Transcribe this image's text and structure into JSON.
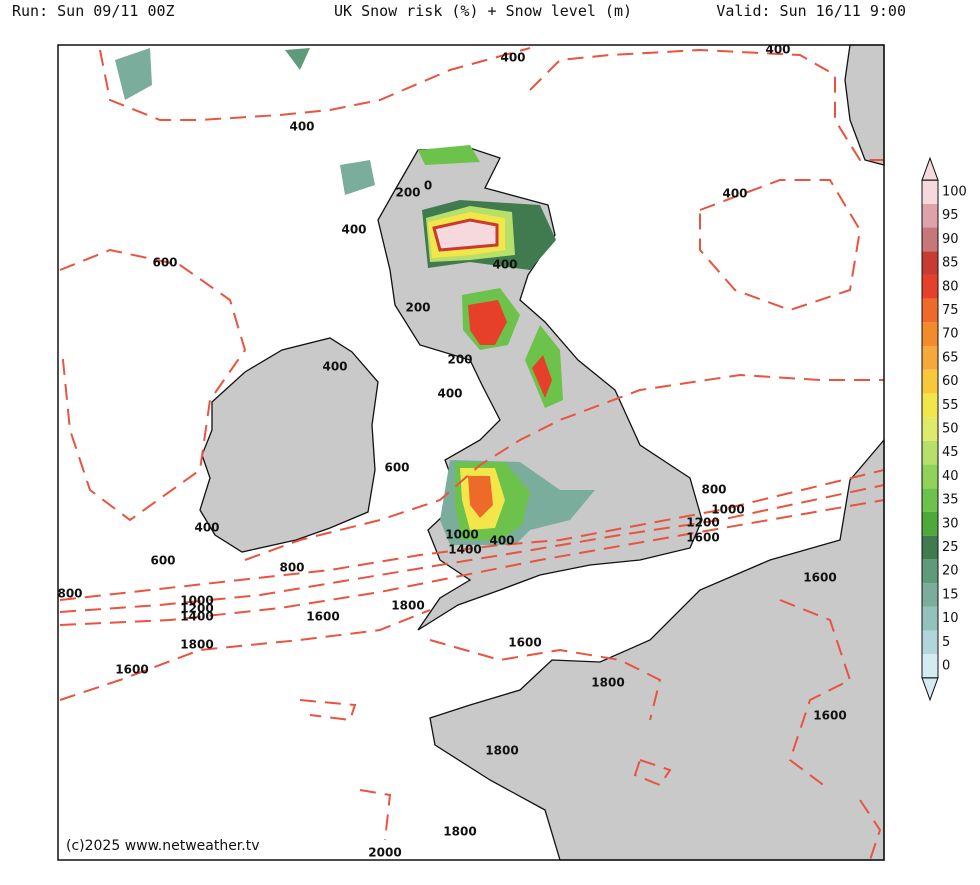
{
  "header": {
    "run": "Run: Sun 09/11 00Z",
    "title": "UK Snow risk (%) + Snow level (m)",
    "valid": "Valid: Sun 16/11 9:00"
  },
  "map": {
    "contour_labels": [
      400,
      400,
      400,
      400,
      200,
      0,
      400,
      400,
      600,
      200,
      200,
      400,
      400,
      600,
      800,
      1000,
      1200,
      1600,
      400,
      600,
      1000,
      1400,
      400,
      800,
      800,
      1000,
      1200,
      1400,
      1800,
      1600,
      1800,
      1600,
      1600,
      1600,
      1800,
      1600,
      1800,
      1800,
      2000
    ],
    "copyright": "(c)2025 www.netweather.tv"
  },
  "colorbar": {
    "ticks": [
      0,
      5,
      10,
      15,
      20,
      25,
      30,
      35,
      40,
      45,
      50,
      55,
      60,
      65,
      70,
      75,
      80,
      85,
      90,
      95,
      100
    ],
    "colors": [
      "#d3ebf1",
      "#b0d5dc",
      "#93c1bb",
      "#7bad9c",
      "#5f9a7b",
      "#3f7b4f",
      "#4ea83a",
      "#6cc24a",
      "#8fd35a",
      "#b6e06a",
      "#dfe96a",
      "#f3e64a",
      "#f7c93a",
      "#f4a93a",
      "#f18b2b",
      "#ee6a2a",
      "#e7402a",
      "#c93a30",
      "#c77779",
      "#dea3a8",
      "#f5d9dd"
    ]
  }
}
